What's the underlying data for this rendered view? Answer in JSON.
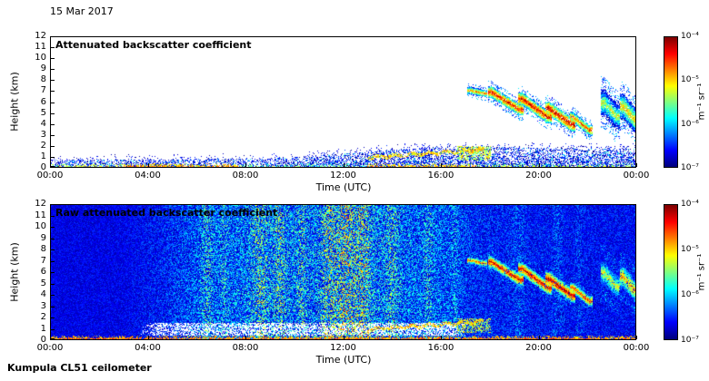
{
  "figure": {
    "date_label": "15 Mar 2017",
    "footer_label": "Kumpula CL51 ceilometer",
    "background_color": "#ffffff"
  },
  "chart_data": [
    {
      "type": "heatmap",
      "title": "Attenuated backscatter coefficient",
      "xlabel": "Time (UTC)",
      "ylabel": "Height (km)",
      "x_tick_labels": [
        "00:00",
        "04:00",
        "08:00",
        "12:00",
        "16:00",
        "20:00",
        "00:00"
      ],
      "x_tick_hours": [
        0,
        4,
        8,
        12,
        16,
        20,
        24
      ],
      "x_range_hours": [
        0,
        24
      ],
      "y_tick_labels": [
        "0",
        "1",
        "2",
        "3",
        "4",
        "5",
        "6",
        "7",
        "8",
        "9",
        "10",
        "11",
        "12"
      ],
      "y_range_km": [
        0,
        12
      ],
      "grid": false,
      "colorbar": {
        "scale": "log",
        "min_value": 1e-07,
        "max_value": 0.0001,
        "tick_labels": [
          "10⁻⁴",
          "10⁻⁵",
          "10⁻⁶",
          "10⁻⁷"
        ],
        "unit": "m⁻¹ sr⁻¹",
        "colormap": "jet",
        "no_data_color": "#ffffff"
      },
      "seed": 101,
      "features": {
        "background": "white",
        "surface_segments": [
          [
            0,
            1,
            0.55,
            -5.5
          ],
          [
            1,
            3,
            0.6,
            -5.3
          ],
          [
            3,
            7.7,
            0.85,
            -5.0
          ],
          [
            7.7,
            13,
            0.45,
            -5.7
          ],
          [
            13,
            17.5,
            0.75,
            -5.1
          ],
          [
            17.5,
            24,
            0.5,
            -5.5
          ]
        ],
        "boundary_layer": {
          "depth_profile": [
            [
              0,
              0.65
            ],
            [
              9,
              0.75
            ],
            [
              16,
              1.9
            ],
            [
              24,
              1.65
            ]
          ],
          "density": 0.62,
          "log_range": [
            -7,
            -6.25
          ],
          "green_frac": 0.1,
          "above_prob": 0.12,
          "above_extent": 0.55
        },
        "bl_top_line": {
          "t": [
            13.0,
            17.8
          ],
          "z": [
            0.85,
            1.6
          ],
          "thick": 0.16,
          "log_range": [
            -5.4,
            -4.7
          ],
          "prob": 0.7
        },
        "plume": {
          "t": [
            16.7,
            18.05
          ],
          "z": [
            0.6,
            1.9
          ],
          "log_range": [
            -5.7,
            -4.9
          ],
          "prob": 0.5
        },
        "clouds": [
          [
            17.25,
            17.75,
            7.05,
            6.8,
            0.35,
            -4.7
          ],
          [
            18.1,
            19.25,
            6.9,
            5.3,
            0.55,
            -4.3
          ],
          [
            19.35,
            20.4,
            6.3,
            4.6,
            0.6,
            -4.3
          ],
          [
            20.45,
            21.4,
            5.4,
            3.9,
            0.65,
            -4.2
          ],
          [
            21.45,
            22.1,
            4.6,
            3.4,
            0.5,
            -4.5
          ],
          [
            22.75,
            23.2,
            5.9,
            4.7,
            1.3,
            -5.2
          ],
          [
            23.5,
            24.0,
            5.6,
            4.3,
            1.2,
            -4.9
          ]
        ]
      }
    },
    {
      "type": "heatmap",
      "title": "Raw attenuated backscatter coefficient",
      "xlabel": "Time (UTC)",
      "ylabel": "Height (km)",
      "x_tick_labels": [
        "00:00",
        "04:00",
        "08:00",
        "12:00",
        "16:00",
        "20:00",
        "00:00"
      ],
      "x_tick_hours": [
        0,
        4,
        8,
        12,
        16,
        20,
        24
      ],
      "x_range_hours": [
        0,
        24
      ],
      "y_tick_labels": [
        "0",
        "1",
        "2",
        "3",
        "4",
        "5",
        "6",
        "7",
        "8",
        "9",
        "10",
        "11",
        "12"
      ],
      "y_range_km": [
        0,
        12
      ],
      "grid": false,
      "colorbar": {
        "scale": "log",
        "min_value": 1e-07,
        "max_value": 0.0001,
        "tick_labels": [
          "10⁻⁴",
          "10⁻⁵",
          "10⁻⁶",
          "10⁻⁷"
        ],
        "unit": "m⁻¹ sr⁻¹",
        "colormap": "jet",
        "no_data_color": "#ffffff"
      },
      "seed": 202,
      "features": {
        "noise": {
          "base": -6.85,
          "span": 1.15,
          "pow": 1.35,
          "amp_profile": [
            [
              0,
              0.32
            ],
            [
              3,
              0.35
            ],
            [
              4.5,
              0.55
            ],
            [
              6,
              0.9
            ],
            [
              8,
              1.1
            ],
            [
              11,
              1.15
            ],
            [
              12.5,
              1.25
            ],
            [
              14,
              1.1
            ],
            [
              16,
              0.95
            ],
            [
              17.5,
              0.62
            ],
            [
              19,
              0.55
            ],
            [
              21,
              0.5
            ],
            [
              24,
              0.45
            ]
          ],
          "streaks": [
            [
              6.4,
              0.25,
              0.5
            ],
            [
              7.1,
              0.15,
              0.3
            ],
            [
              8.6,
              0.35,
              0.55
            ],
            [
              9.4,
              0.25,
              0.5
            ],
            [
              10.3,
              0.2,
              0.35
            ],
            [
              11.4,
              0.3,
              0.65
            ],
            [
              12.1,
              0.35,
              0.85
            ],
            [
              12.8,
              0.3,
              0.7
            ],
            [
              14.0,
              0.25,
              0.45
            ],
            [
              15.5,
              0.2,
              0.35
            ],
            [
              16.6,
              0.15,
              0.3
            ],
            [
              19.2,
              0.25,
              0.25
            ],
            [
              20.8,
              0.2,
              0.25
            ],
            [
              21.7,
              0.15,
              0.2
            ]
          ]
        },
        "white_band": {
          "t": [
            3.6,
            17.2
          ],
          "z": [
            0.3,
            1.45
          ],
          "prob": 0.55
        },
        "surface_segments": [
          [
            0,
            24,
            0.9,
            -4.9
          ]
        ],
        "bl_top_line": {
          "t": [
            13.0,
            17.8
          ],
          "z": [
            0.85,
            1.6
          ],
          "thick": 0.16,
          "log_range": [
            -5.4,
            -4.7
          ],
          "prob": 0.7
        },
        "plume": {
          "t": [
            16.7,
            18.05
          ],
          "z": [
            0.6,
            1.9
          ],
          "log_range": [
            -5.7,
            -4.9
          ],
          "prob": 0.5
        },
        "clouds": [
          [
            17.25,
            17.75,
            7.05,
            6.8,
            0.35,
            -4.7
          ],
          [
            18.1,
            19.25,
            6.9,
            5.3,
            0.55,
            -4.3
          ],
          [
            19.35,
            20.4,
            6.3,
            4.6,
            0.6,
            -4.3
          ],
          [
            20.45,
            21.4,
            5.4,
            3.9,
            0.65,
            -4.2
          ],
          [
            21.45,
            22.1,
            4.6,
            3.4,
            0.5,
            -4.5
          ],
          [
            22.75,
            23.2,
            5.9,
            4.7,
            1.3,
            -5.2
          ],
          [
            23.5,
            24.0,
            5.6,
            4.3,
            1.2,
            -4.9
          ]
        ]
      }
    }
  ]
}
